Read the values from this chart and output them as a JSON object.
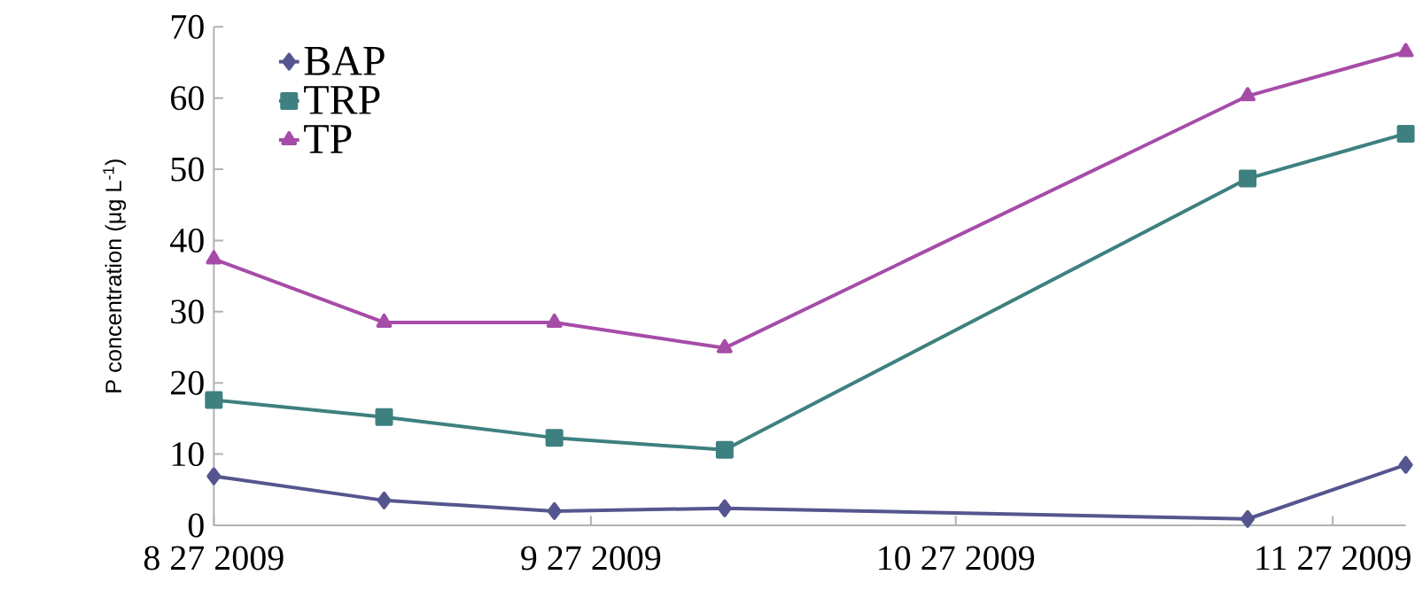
{
  "chart_data": {
    "type": "line",
    "ylabel": "P concentration (μg L$^{-1}$)",
    "x": [
      "2009-08-27",
      "2009-09-10",
      "2009-09-24",
      "2009-10-08",
      "2009-11-20",
      "2009-12-03"
    ],
    "series": [
      {
        "name": "BAP",
        "color": "#55558f",
        "marker": "diamond",
        "values": [
          6.9,
          3.5,
          2.0,
          2.4,
          0.9,
          8.5
        ]
      },
      {
        "name": "TRP",
        "color": "#3e8080",
        "marker": "square",
        "values": [
          17.6,
          15.2,
          12.3,
          10.6,
          48.7,
          55.0
        ]
      },
      {
        "name": "TP",
        "color": "#a64ca8",
        "marker": "triangle",
        "values": [
          37.4,
          28.5,
          28.5,
          24.9,
          60.3,
          66.5
        ]
      }
    ],
    "xlim": [
      "2009-08-27",
      "2009-12-03"
    ],
    "xticks": [
      {
        "value": "2009-08-27",
        "label": "8 27 2009"
      },
      {
        "value": "2009-09-27",
        "label": "9 27 2009"
      },
      {
        "value": "2009-10-27",
        "label": "10 27 2009"
      },
      {
        "value": "2009-11-27",
        "label": "11 27 2009"
      }
    ],
    "ylim": [
      0,
      70
    ],
    "yticks": [
      0,
      10,
      20,
      30,
      40,
      50,
      60,
      70
    ],
    "legend": "top left",
    "grid": false,
    "line_style": "solid"
  }
}
